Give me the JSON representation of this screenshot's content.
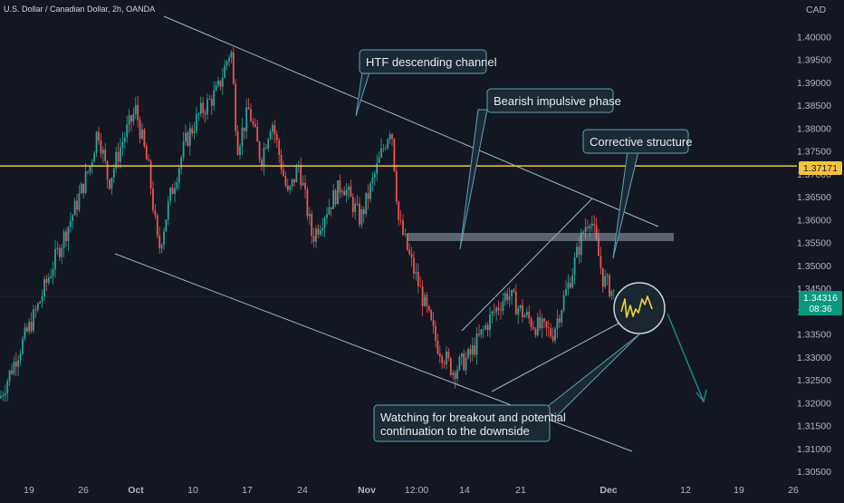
{
  "header": {
    "symbol_title": "U.S. Dollar / Canadian Dollar, 2h, OANDA",
    "currency": "CAD"
  },
  "chart_data": {
    "type": "candlestick",
    "title": "U.S. Dollar / Canadian Dollar, 2h, OANDA",
    "y_unit": "CAD",
    "ylim": [
      1.302,
      1.408
    ],
    "y_ticks": [
      "1.40000",
      "1.39500",
      "1.39000",
      "1.38500",
      "1.38000",
      "1.37500",
      "1.37000",
      "1.36500",
      "1.36000",
      "1.35500",
      "1.35000",
      "1.34500",
      "1.34000",
      "1.33500",
      "1.33000",
      "1.32500",
      "1.32000",
      "1.31500",
      "1.31000",
      "1.30500"
    ],
    "x_ticks": [
      "19",
      "26",
      "Oct",
      "10",
      "17",
      "24",
      "Nov",
      "12:00",
      "14",
      "21",
      "Dec",
      "12",
      "19",
      "26"
    ],
    "grid": false,
    "price_path": [
      [
        "Sep 16",
        1.321
      ],
      [
        "Sep 18",
        1.33
      ],
      [
        "Sep 20",
        1.34
      ],
      [
        "Sep 22",
        1.352
      ],
      [
        "Sep 24",
        1.362
      ],
      [
        "Sep 26",
        1.372
      ],
      [
        "Sep 27",
        1.38
      ],
      [
        "Sep 28",
        1.368
      ],
      [
        "Sep 30",
        1.377
      ],
      [
        "Oct 1",
        1.384
      ],
      [
        "Oct 3",
        1.37
      ],
      [
        "Oct 5",
        1.353
      ],
      [
        "Oct 7",
        1.365
      ],
      [
        "Oct 9",
        1.377
      ],
      [
        "Oct 11",
        1.383
      ],
      [
        "Oct 13",
        1.388
      ],
      [
        "Oct 14",
        1.3975
      ],
      [
        "Oct 15",
        1.376
      ],
      [
        "Oct 17",
        1.384
      ],
      [
        "Oct 19",
        1.373
      ],
      [
        "Oct 21",
        1.382
      ],
      [
        "Oct 23",
        1.365
      ],
      [
        "Oct 25",
        1.372
      ],
      [
        "Oct 27",
        1.356
      ],
      [
        "Oct 29",
        1.362
      ],
      [
        "Oct 31",
        1.368
      ],
      [
        "Nov 2",
        1.36
      ],
      [
        "Nov 4",
        1.381
      ],
      [
        "Nov 5",
        1.36
      ],
      [
        "Nov 7",
        1.352
      ],
      [
        "Nov 9",
        1.342
      ],
      [
        "Nov 11",
        1.333
      ],
      [
        "Nov 13",
        1.327
      ],
      [
        "Nov 15",
        1.33
      ],
      [
        "Nov 17",
        1.338
      ],
      [
        "Nov 19",
        1.344
      ],
      [
        "Nov 21",
        1.34
      ],
      [
        "Nov 23",
        1.337
      ],
      [
        "Nov 25",
        1.335
      ],
      [
        "Nov 27",
        1.346
      ],
      [
        "Nov 29",
        1.358
      ],
      [
        "Nov 30",
        1.361
      ],
      [
        "Dec 1",
        1.347
      ],
      [
        "Dec 2",
        1.3432
      ]
    ],
    "horizontal_lines": [
      {
        "label": "1.37171",
        "value": 1.37171,
        "color": "#f5c33b"
      }
    ],
    "current_price": {
      "label": "1.34316",
      "value": 1.34316,
      "countdown": "08:36",
      "color": "#089981"
    },
    "resistance_zone": [
      1.3558,
      1.357
    ],
    "annotations": [
      "HTF descending channel",
      "Bearish impulsive phase",
      "Corrective structure",
      "Watching for breakout and potential continuation to the downside"
    ]
  }
}
